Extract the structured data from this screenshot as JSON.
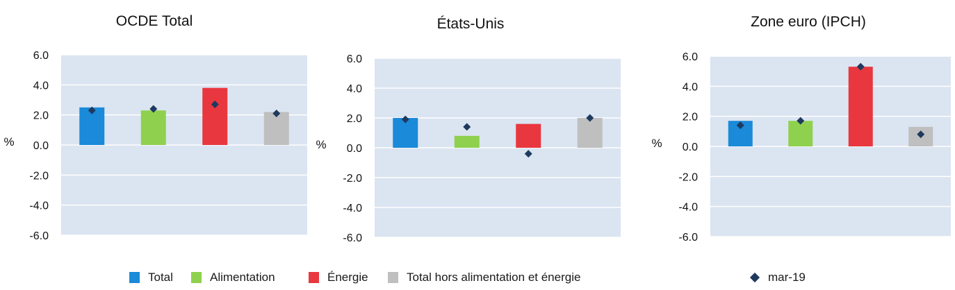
{
  "colors": {
    "plot_bg": "#dbe4f1",
    "grid": "#ffffff",
    "marker": "#1f3a5f",
    "series": [
      "#1a8ad9",
      "#8fd14f",
      "#e8373f",
      "#bfbfbf"
    ]
  },
  "legend": {
    "items": [
      "Total",
      "Alimentation",
      "Énergie",
      "Total hors alimentation et énergie"
    ],
    "marker_label": "mar-19"
  },
  "chart_data": [
    {
      "type": "bar",
      "title": "OCDE Total",
      "ylabel": "%",
      "ylim": [
        -6,
        6
      ],
      "yticks": [
        "6.0",
        "4.0",
        "2.0",
        "0.0",
        "-2.0",
        "-4.0",
        "-6.0"
      ],
      "categories": [
        "Total",
        "Alimentation",
        "Énergie",
        "Total hors alimentation et énergie"
      ],
      "values": [
        2.5,
        2.3,
        3.8,
        2.2
      ],
      "markers": {
        "name": "mar-19",
        "values": [
          2.3,
          2.4,
          2.7,
          2.1
        ]
      }
    },
    {
      "type": "bar",
      "title": "États-Unis",
      "ylabel": "%",
      "ylim": [
        -6,
        6
      ],
      "yticks": [
        "6.0",
        "4.0",
        "2.0",
        "0.0",
        "-2.0",
        "-4.0",
        "-6.0"
      ],
      "categories": [
        "Total",
        "Alimentation",
        "Énergie",
        "Total hors alimentation et énergie"
      ],
      "values": [
        2.0,
        0.8,
        1.6,
        2.0
      ],
      "markers": {
        "name": "mar-19",
        "values": [
          1.9,
          1.4,
          -0.4,
          2.0
        ]
      }
    },
    {
      "type": "bar",
      "title": "Zone euro (IPCH)",
      "ylabel": "%",
      "ylim": [
        -6,
        6
      ],
      "yticks": [
        "6.0",
        "4.0",
        "2.0",
        "0.0",
        "-2.0",
        "-4.0",
        "-6.0"
      ],
      "categories": [
        "Total",
        "Alimentation",
        "Énergie",
        "Total hors alimentation et énergie"
      ],
      "values": [
        1.7,
        1.7,
        5.3,
        1.3
      ],
      "markers": {
        "name": "mar-19",
        "values": [
          1.4,
          1.7,
          5.3,
          0.8
        ]
      }
    }
  ]
}
